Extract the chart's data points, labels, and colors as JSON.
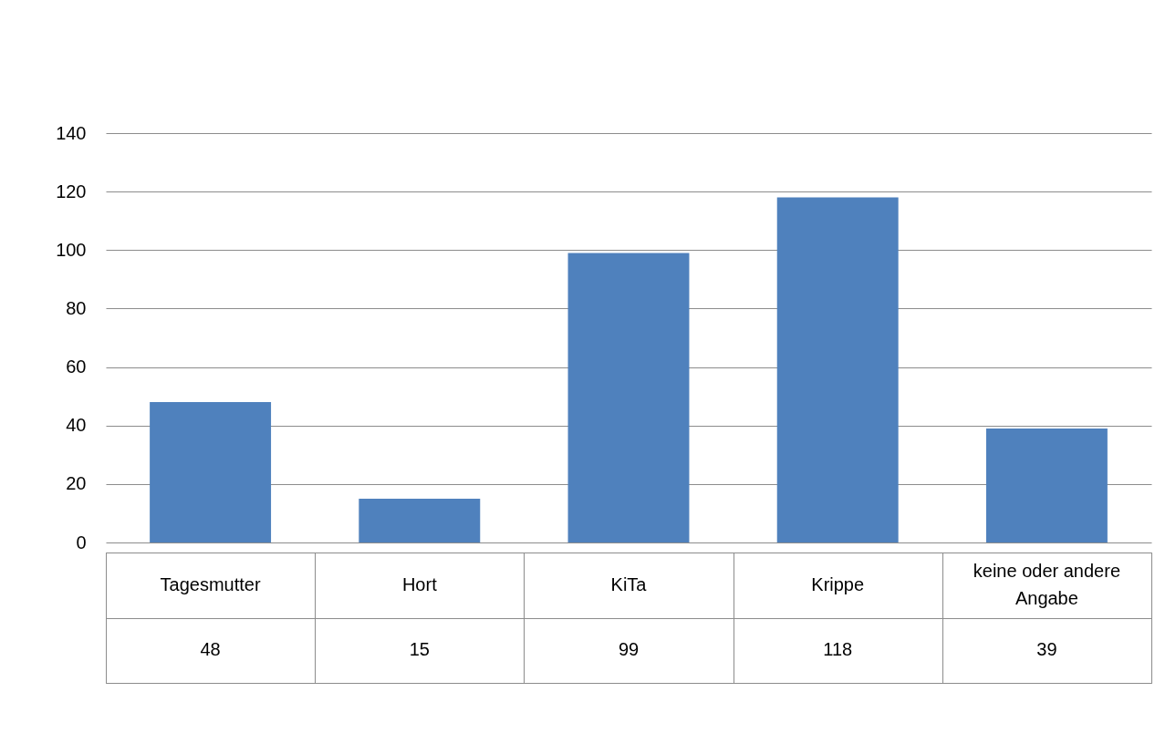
{
  "chart_data": {
    "type": "bar",
    "categories": [
      "Tagesmutter",
      "Hort",
      "KiTa",
      "Krippe",
      "keine oder andere Angabe"
    ],
    "values": [
      48,
      15,
      99,
      118,
      39
    ],
    "color": "#4f81bd",
    "ylim": [
      0,
      140
    ],
    "yticks": [
      0,
      20,
      40,
      60,
      80,
      100,
      120,
      140
    ],
    "grid": "y",
    "data_labels": true
  }
}
